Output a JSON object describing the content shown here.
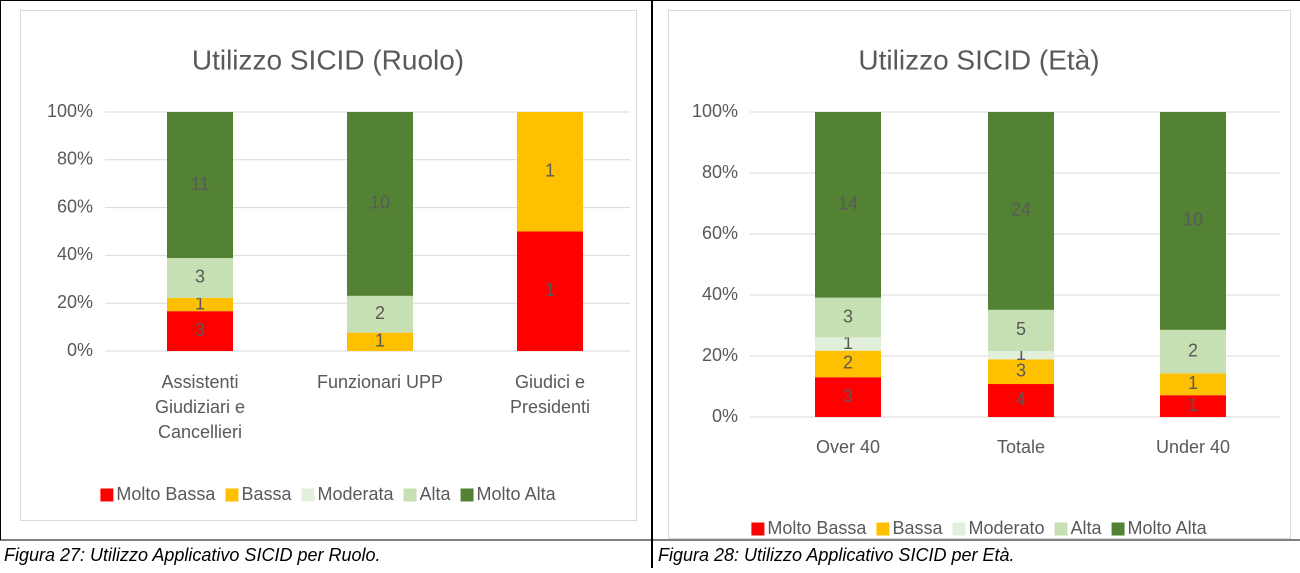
{
  "chart_data": [
    {
      "type": "stacked_percent_bar",
      "title": "Utilizzo SICID (Ruolo)",
      "categories": [
        "Assistenti Giudiziari e Cancellieri",
        "Funzionari UPP",
        "Giudici e Presidenti"
      ],
      "series": [
        {
          "name": "Molto Bassa",
          "color": "#ff0000",
          "values": [
            3,
            null,
            1
          ]
        },
        {
          "name": "Bassa",
          "color": "#ffc000",
          "values": [
            1,
            1,
            1
          ]
        },
        {
          "name": "Moderata",
          "color": "#e2efda",
          "values": [
            null,
            null,
            null
          ]
        },
        {
          "name": "Alta",
          "color": "#c6e0b4",
          "values": [
            3,
            2,
            null
          ]
        },
        {
          "name": "Molto Alta",
          "color": "#548235",
          "values": [
            11,
            10,
            null
          ]
        }
      ],
      "ylim": [
        0,
        100
      ],
      "yticks": [
        {
          "value": 0,
          "label": "0%"
        },
        {
          "value": 20,
          "label": "20%"
        },
        {
          "value": 40,
          "label": "40%"
        },
        {
          "value": 60,
          "label": "60%"
        },
        {
          "value": 80,
          "label": "80%"
        },
        {
          "value": 100,
          "label": "100%"
        }
      ],
      "grid": true,
      "legend": "bottom"
    },
    {
      "type": "stacked_percent_bar",
      "title": "Utilizzo SICID (Età)",
      "categories": [
        "Over 40",
        "Totale",
        "Under 40"
      ],
      "series": [
        {
          "name": "Molto Bassa",
          "color": "#ff0000",
          "values": [
            3,
            4,
            1
          ]
        },
        {
          "name": "Bassa",
          "color": "#ffc000",
          "values": [
            2,
            3,
            1
          ]
        },
        {
          "name": "Moderato",
          "color": "#e2efda",
          "values": [
            1,
            1,
            null
          ]
        },
        {
          "name": "Alta",
          "color": "#c6e0b4",
          "values": [
            3,
            5,
            2
          ]
        },
        {
          "name": "Molto Alta",
          "color": "#548235",
          "values": [
            14,
            24,
            10
          ]
        }
      ],
      "ylim": [
        0,
        100
      ],
      "yticks": [
        {
          "value": 0,
          "label": "0%"
        },
        {
          "value": 20,
          "label": "20%"
        },
        {
          "value": 40,
          "label": "40%"
        },
        {
          "value": 60,
          "label": "60%"
        },
        {
          "value": 80,
          "label": "80%"
        },
        {
          "value": 100,
          "label": "100%"
        }
      ],
      "grid": true,
      "legend": "bottom"
    }
  ],
  "captions": [
    "Figura 27: Utilizzo Applicativo SICID per Ruolo.",
    "Figura 28: Utilizzo Applicativo SICID per Età."
  ]
}
